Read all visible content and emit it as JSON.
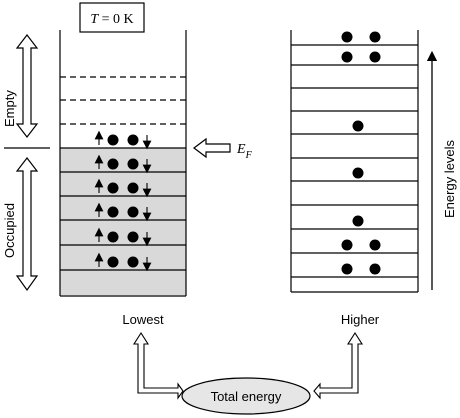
{
  "temperature": {
    "symbol": "T",
    "rest": " = 0 K"
  },
  "fermi": {
    "symbol": "E",
    "subscript": "F"
  },
  "labels": {
    "empty": "Empty",
    "occupied": "Occupied",
    "lowest": "Lowest",
    "higher": "Higher",
    "total_energy": "Total energy",
    "energy_levels": "Energy levels"
  },
  "left_well": {
    "empty_levels": 3,
    "occupied_levels": 6,
    "fill_color": "#d9d9d9"
  },
  "right_well": {
    "level_count": 11,
    "electrons_per_level": [
      2,
      2,
      0,
      0,
      1,
      0,
      1,
      0,
      1,
      2,
      2
    ]
  },
  "colors": {
    "ellipse_fill": "#e6e6e6",
    "ink": "#000000"
  },
  "icons": [
    "double-arrow-icon",
    "spin-up-arrow-icon",
    "spin-down-arrow-icon",
    "block-arrow-icon",
    "upward-arrow-icon"
  ]
}
